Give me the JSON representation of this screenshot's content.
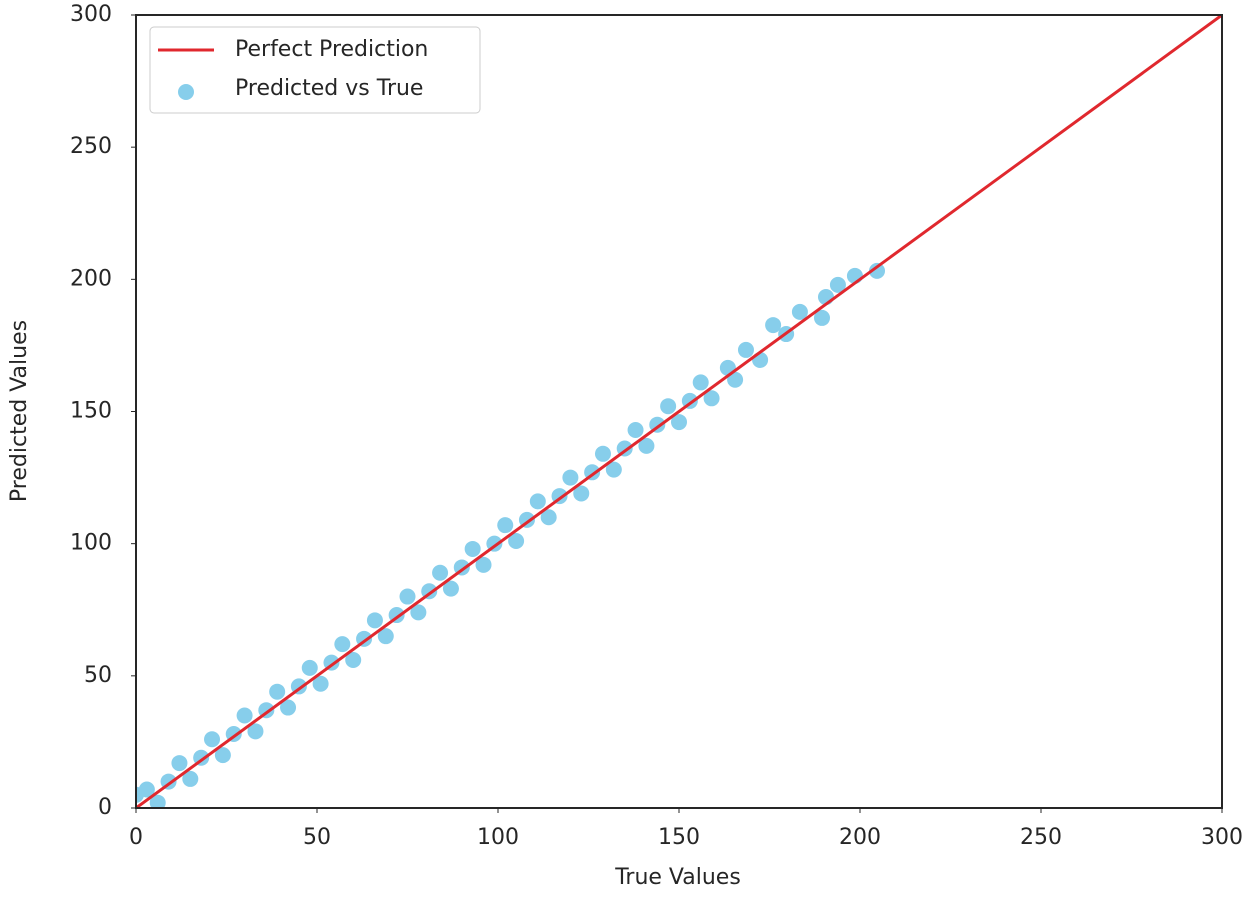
{
  "chart_data": {
    "type": "scatter",
    "xlabel": "True Values",
    "ylabel": "Predicted Values",
    "xlim": [
      0,
      300
    ],
    "ylim": [
      0,
      300
    ],
    "xticks": [
      0,
      50,
      100,
      150,
      200,
      250,
      300
    ],
    "yticks": [
      0,
      50,
      100,
      150,
      200,
      250,
      300
    ],
    "legend": "upper left",
    "series": [
      {
        "name": "Perfect Prediction",
        "kind": "line",
        "color": "#e0282e",
        "x": [
          0,
          300
        ],
        "values": [
          0,
          300
        ]
      },
      {
        "name": "Predicted vs True",
        "kind": "scatter",
        "color": "#87ceeb",
        "x": [
          0,
          3,
          6,
          9,
          12,
          15,
          18,
          21,
          24,
          27,
          30,
          33,
          36,
          39,
          42,
          45,
          48,
          51,
          54,
          57,
          60,
          63,
          66,
          69,
          72,
          75,
          78,
          81,
          84,
          87,
          90,
          93,
          96,
          99,
          102,
          105,
          108,
          111,
          114,
          117,
          120,
          123,
          126,
          129,
          132,
          135,
          138,
          141,
          144,
          147,
          150,
          153,
          156,
          159,
          163.5,
          165.5,
          168.5,
          172.4,
          176,
          179.6,
          183.4,
          189.5,
          190.6,
          193.9,
          198.6,
          204.7
        ],
        "values": [
          5,
          7,
          2,
          10,
          17,
          11,
          19,
          26,
          20,
          28,
          35,
          29,
          37,
          44,
          38,
          46,
          53,
          47,
          55,
          62,
          56,
          64,
          71,
          65,
          73,
          80,
          74,
          82,
          89,
          83,
          91,
          98,
          92,
          100,
          107,
          101,
          109,
          116,
          110,
          118,
          125,
          119,
          127,
          134,
          128,
          136,
          143,
          137,
          145,
          152,
          146,
          154,
          161,
          155,
          166.5,
          162,
          173.3,
          169.5,
          182.7,
          179.3,
          187.7,
          185.4,
          193.3,
          197.9,
          201.3,
          203.2
        ]
      }
    ]
  }
}
